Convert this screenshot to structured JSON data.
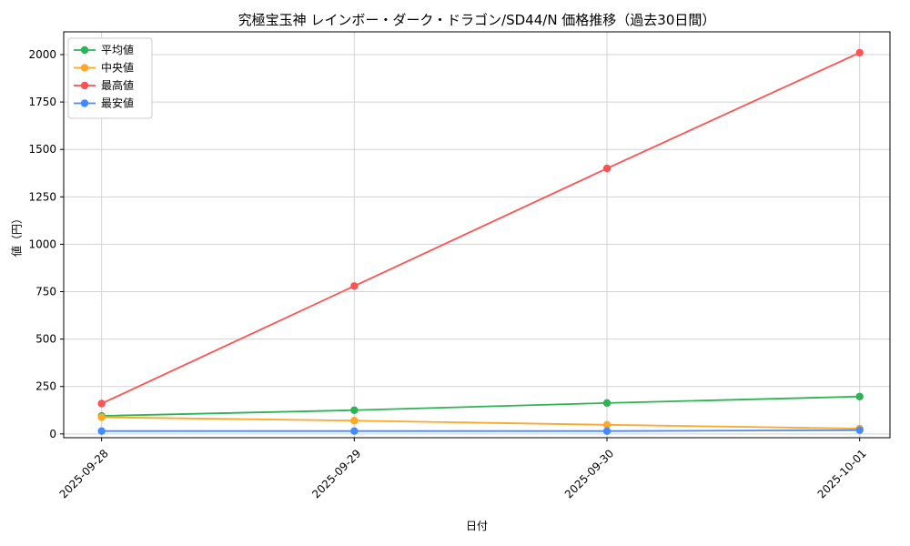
{
  "chart_data": {
    "type": "line",
    "title": "究極宝玉神 レインボー・ダーク・ドラゴン/SD44/N 価格推移（過去30日間）",
    "xlabel": "日付",
    "ylabel": "値（円）",
    "categories": [
      "2025-09-28",
      "2025-09-29",
      "2025-09-30",
      "2025-10-01"
    ],
    "series": [
      {
        "name": "平均値",
        "color": "#2cb454",
        "values": [
          95,
          125,
          163,
          197
        ]
      },
      {
        "name": "中央値",
        "color": "#ffa726",
        "values": [
          88,
          70,
          48,
          28
        ]
      },
      {
        "name": "最高値",
        "color": "#ff5252",
        "values": [
          160,
          780,
          1400,
          2010
        ]
      },
      {
        "name": "最安値",
        "color": "#448aff",
        "values": [
          15,
          15,
          15,
          20
        ]
      }
    ],
    "ylim": [
      0,
      2000
    ],
    "yticks": [
      0,
      250,
      500,
      750,
      1000,
      1250,
      1500,
      1750,
      2000
    ],
    "grid": true,
    "legend_position": "upper left",
    "grid_color": "#d3d3d3",
    "spine_color": "#000000",
    "legend_border_color": "#cccccc"
  }
}
